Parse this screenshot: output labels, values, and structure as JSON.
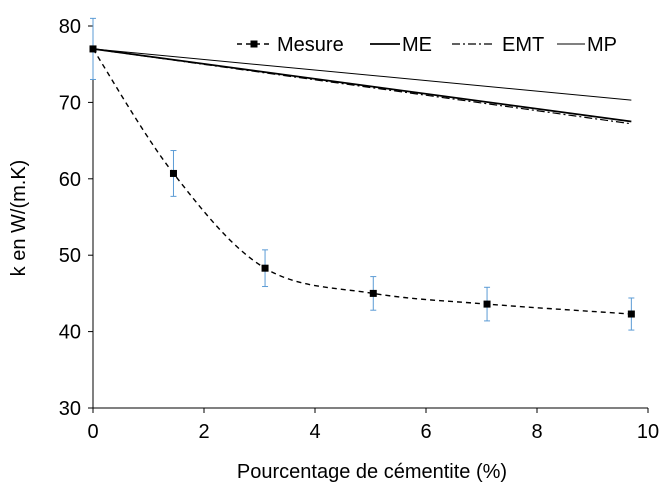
{
  "chart_data": {
    "type": "line",
    "xlabel": "Pourcentage de cémentite (%)",
    "ylabel": "k en W/(m.K)",
    "xlim": [
      0,
      10
    ],
    "ylim": [
      30,
      80
    ],
    "x_ticks": [
      0,
      2,
      4,
      6,
      8,
      10
    ],
    "y_ticks": [
      30,
      40,
      50,
      60,
      70,
      80
    ],
    "legend_position": "top-right",
    "grid": false,
    "series": [
      {
        "name": "Mesure",
        "style": "dashed",
        "marker": "square",
        "x": [
          0,
          1.45,
          3.1,
          5.05,
          7.1,
          9.7
        ],
        "y": [
          77,
          60.7,
          48.3,
          45.0,
          43.6,
          42.3
        ],
        "error": [
          4.0,
          3.0,
          2.4,
          2.2,
          2.2,
          2.1
        ],
        "error_color": "#5B9BD5"
      },
      {
        "name": "ME",
        "style": "solid-thick",
        "x": [
          0,
          9.7
        ],
        "y": [
          77,
          67.5
        ]
      },
      {
        "name": "EMT",
        "style": "dashdot",
        "x": [
          0,
          9.7
        ],
        "y": [
          77,
          67.2
        ]
      },
      {
        "name": "MP",
        "style": "solid-thin",
        "x": [
          0,
          9.7
        ],
        "y": [
          77,
          70.3
        ]
      }
    ]
  }
}
